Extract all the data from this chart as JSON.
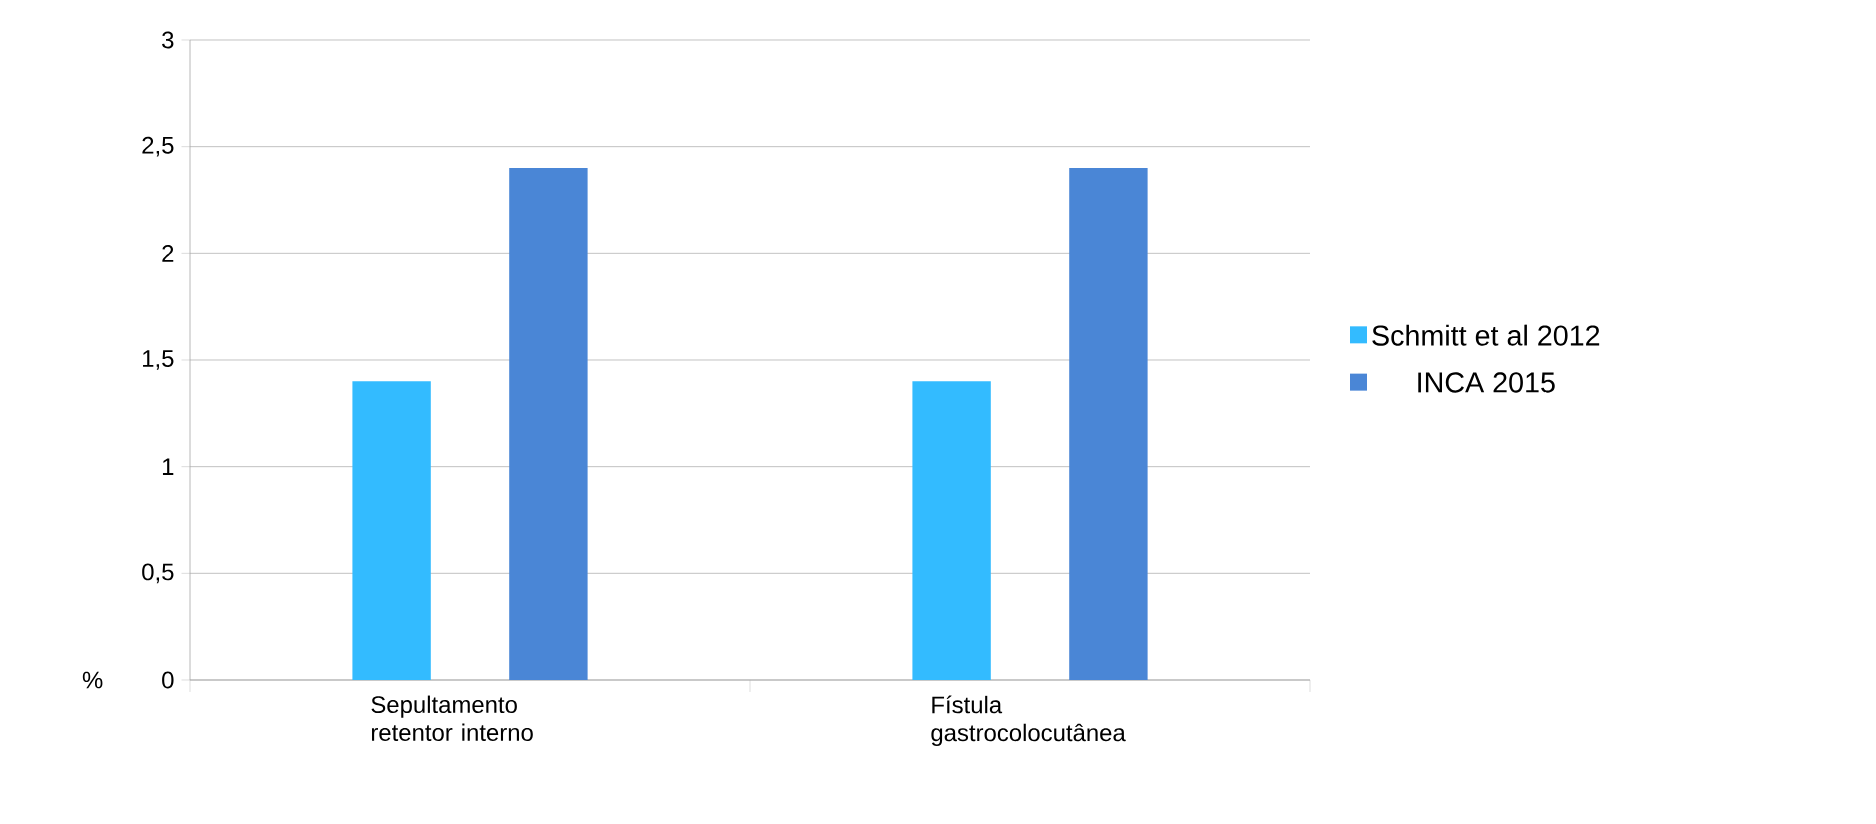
{
  "chart_data": {
    "type": "bar",
    "ylabel": "%",
    "categories": [
      "Sepultamento retentor interno",
      "Fístula gastrocolocutânea"
    ],
    "series": [
      {
        "name": "Schmitt et al 2012",
        "color": "#33bbff",
        "values": [
          1.4,
          1.4
        ]
      },
      {
        "name": "INCA  2015",
        "color": "#4a86d6",
        "values": [
          2.4,
          2.4
        ]
      }
    ],
    "ylim": [
      0,
      3
    ],
    "yticks": [
      0,
      {
        "value": 0.5,
        "label": "0,5"
      },
      1,
      {
        "value": 1.5,
        "label": "1,5"
      },
      2,
      {
        "value": 2.5,
        "label": "2,5"
      },
      3
    ],
    "grid": "y",
    "legend": "right"
  }
}
